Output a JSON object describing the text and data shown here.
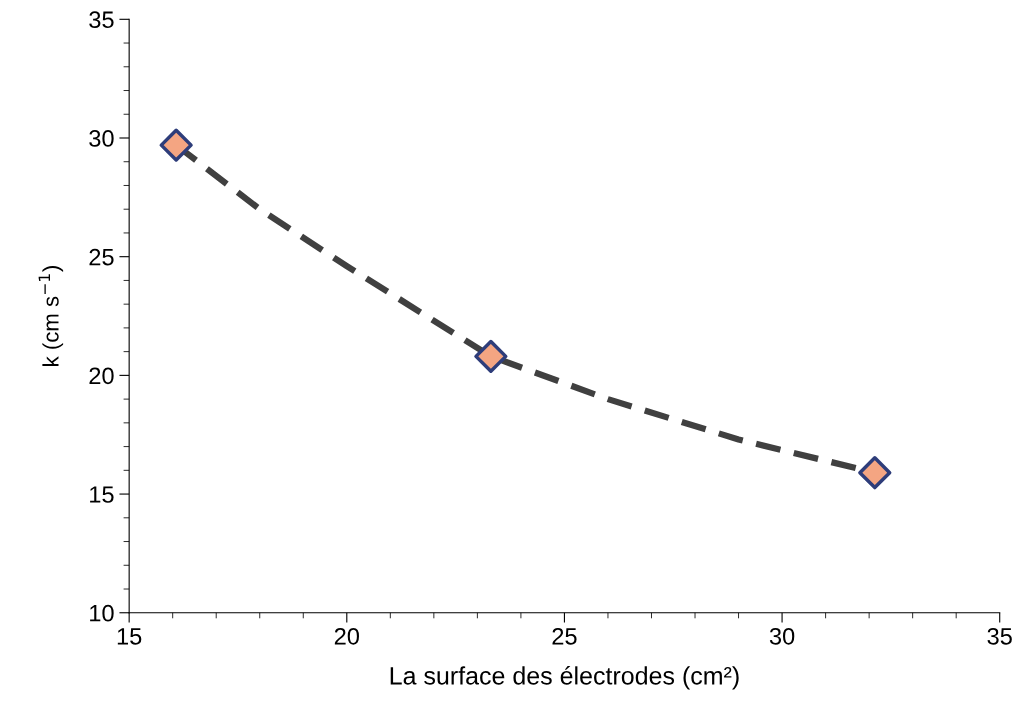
{
  "chart_data": {
    "type": "scatter",
    "xlabel": "La surface des électrodes (cm²)",
    "ylabel": "k (cm s$^{−1}$)",
    "xlim": [
      15,
      35
    ],
    "xticks": [
      15,
      20,
      25,
      30,
      35
    ],
    "ylim": [
      10,
      35
    ],
    "yticks": [
      10,
      15,
      20,
      25,
      30,
      35
    ],
    "grid": false,
    "legend": false,
    "series": [
      {
        "type": "line",
        "color": "#404040",
        "line_style": "dashed",
        "marker": "none",
        "x": [
          16.08,
          18,
          20,
          23.31,
          26,
          29,
          32.13
        ],
        "values": [
          29.7,
          27.0,
          24.6,
          20.8,
          19.0,
          17.3,
          15.9
        ]
      },
      {
        "color": "#f4a582",
        "marker": "diamond",
        "x": [
          16.08,
          23.31,
          32.13
        ],
        "values": [
          29.7,
          20.8,
          15.9
        ]
      }
    ]
  }
}
